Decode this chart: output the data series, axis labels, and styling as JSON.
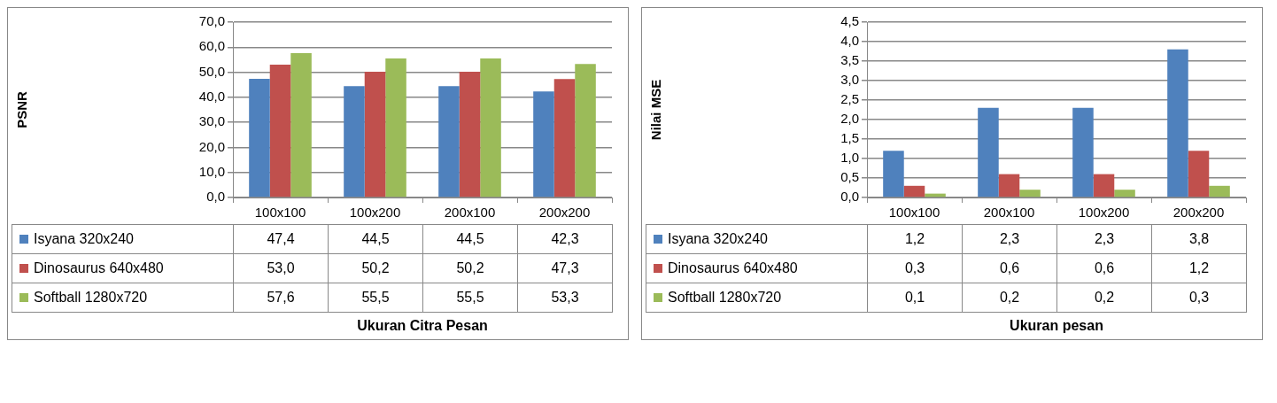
{
  "chart_data": [
    {
      "type": "bar",
      "ylabel": "PSNR",
      "xlabel": "Ukuran Citra Pesan",
      "categories": [
        "100x100",
        "100x200",
        "200x100",
        "200x200"
      ],
      "series": [
        {
          "name": "Isyana 320x240",
          "color": "#4f81bd",
          "values": [
            47.4,
            44.5,
            44.5,
            42.3
          ],
          "value_labels": [
            "47,4",
            "44,5",
            "44,5",
            "42,3"
          ]
        },
        {
          "name": "Dinosaurus 640x480",
          "color": "#c0504d",
          "values": [
            53.0,
            50.2,
            50.2,
            47.3
          ],
          "value_labels": [
            "53,0",
            "50,2",
            "50,2",
            "47,3"
          ]
        },
        {
          "name": "Softball 1280x720",
          "color": "#9bbb59",
          "values": [
            57.6,
            55.5,
            55.5,
            53.3
          ],
          "value_labels": [
            "57,6",
            "55,5",
            "55,5",
            "53,3"
          ]
        }
      ],
      "ylim": [
        0,
        70
      ],
      "yticks": [
        {
          "value": 0,
          "label": "0,0"
        },
        {
          "value": 10,
          "label": "10,0"
        },
        {
          "value": 20,
          "label": "20,0"
        },
        {
          "value": 30,
          "label": "30,0"
        },
        {
          "value": 40,
          "label": "40,0"
        },
        {
          "value": 50,
          "label": "50,0"
        },
        {
          "value": 60,
          "label": "60,0"
        },
        {
          "value": 70,
          "label": "70,0"
        }
      ],
      "grid": "y",
      "legend": "bottom"
    },
    {
      "type": "bar",
      "ylabel": "Nilai MSE",
      "xlabel": "Ukuran pesan",
      "categories": [
        "100x100",
        "200x100",
        "100x200",
        "200x200"
      ],
      "series": [
        {
          "name": "Isyana 320x240",
          "color": "#4f81bd",
          "values": [
            1.2,
            2.3,
            2.3,
            3.8
          ],
          "value_labels": [
            "1,2",
            "2,3",
            "2,3",
            "3,8"
          ]
        },
        {
          "name": "Dinosaurus 640x480",
          "color": "#c0504d",
          "values": [
            0.3,
            0.6,
            0.6,
            1.2
          ],
          "value_labels": [
            "0,3",
            "0,6",
            "0,6",
            "1,2"
          ]
        },
        {
          "name": "Softball 1280x720",
          "color": "#9bbb59",
          "values": [
            0.1,
            0.2,
            0.2,
            0.3
          ],
          "value_labels": [
            "0,1",
            "0,2",
            "0,2",
            "0,3"
          ]
        }
      ],
      "ylim": [
        0,
        4.5
      ],
      "yticks": [
        {
          "value": 0,
          "label": "0,0"
        },
        {
          "value": 0.5,
          "label": "0,5"
        },
        {
          "value": 1,
          "label": "1,0"
        },
        {
          "value": 1.5,
          "label": "1,5"
        },
        {
          "value": 2,
          "label": "2,0"
        },
        {
          "value": 2.5,
          "label": "2,5"
        },
        {
          "value": 3,
          "label": "3,0"
        },
        {
          "value": 3.5,
          "label": "3,5"
        },
        {
          "value": 4,
          "label": "4,0"
        },
        {
          "value": 4.5,
          "label": "4,5"
        }
      ],
      "grid": "y",
      "legend": "bottom"
    }
  ]
}
